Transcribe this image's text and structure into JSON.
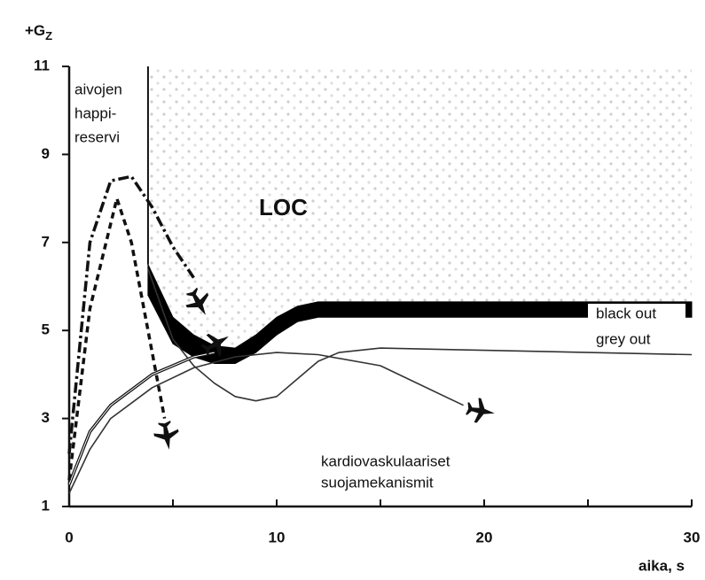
{
  "chart_data": {
    "type": "line",
    "y_label": "+G",
    "y_label_subscript": "Z",
    "x_label": "aika, s",
    "annotations": [
      "aivojen",
      "happi-",
      "reservi",
      "LOC",
      "black out",
      "grey out",
      "kardiovaskulaariset",
      "suojamekanismit"
    ],
    "xlim": [
      0,
      30
    ],
    "ylim": [
      1,
      11
    ],
    "xticks": [
      0,
      10,
      20,
      30
    ],
    "xminorticks": [
      5,
      15,
      25
    ],
    "yticks": [
      1,
      3,
      5,
      7,
      9,
      11
    ],
    "reserve_line": {
      "x": 3.8,
      "y": [
        6.5,
        11
      ]
    },
    "band": {
      "color": "#000000",
      "x": [
        3.8,
        5,
        6,
        7,
        8,
        9,
        10,
        11,
        12,
        15,
        20,
        25,
        30
      ],
      "y_upper": [
        6.5,
        5.3,
        4.9,
        4.65,
        4.6,
        4.9,
        5.3,
        5.55,
        5.65,
        5.65,
        5.65,
        5.65,
        5.65
      ],
      "y_lower": [
        5.8,
        4.7,
        4.4,
        4.25,
        4.25,
        4.5,
        4.9,
        5.2,
        5.3,
        5.3,
        5.3,
        5.3,
        5.3
      ]
    },
    "series": [
      {
        "color": "#333333",
        "style": "solid",
        "x": [
          3.8,
          5,
          6,
          7,
          8,
          9,
          10,
          11,
          12,
          13,
          15,
          20,
          30
        ],
        "y": [
          6.4,
          4.8,
          4.2,
          3.8,
          3.5,
          3.4,
          3.5,
          3.9,
          4.3,
          4.5,
          4.6,
          4.55,
          4.45
        ]
      },
      {
        "color": "#333333",
        "style": "solid",
        "x": [
          0,
          1,
          2,
          4,
          6,
          8,
          10,
          12,
          15,
          19
        ],
        "y": [
          1.3,
          2.3,
          3,
          3.7,
          4.15,
          4.4,
          4.5,
          4.45,
          4.2,
          3.3
        ]
      },
      {
        "color": "#111111",
        "style": "double",
        "x": [
          0,
          1,
          2,
          4,
          6,
          7
        ],
        "y": [
          1.5,
          2.7,
          3.3,
          4.0,
          4.4,
          4.5
        ]
      },
      {
        "color": "#111111",
        "style": "dashed",
        "x": [
          0,
          1,
          2.3,
          3,
          4,
          4.6
        ],
        "y": [
          1.6,
          5.5,
          8.0,
          7,
          4.5,
          3.0
        ]
      },
      {
        "color": "#111111",
        "style": "dashdot",
        "x": [
          0,
          1,
          2,
          3,
          4,
          5,
          6
        ],
        "y": [
          2.2,
          7,
          8.4,
          8.5,
          7.8,
          6.9,
          6.2
        ]
      }
    ]
  }
}
